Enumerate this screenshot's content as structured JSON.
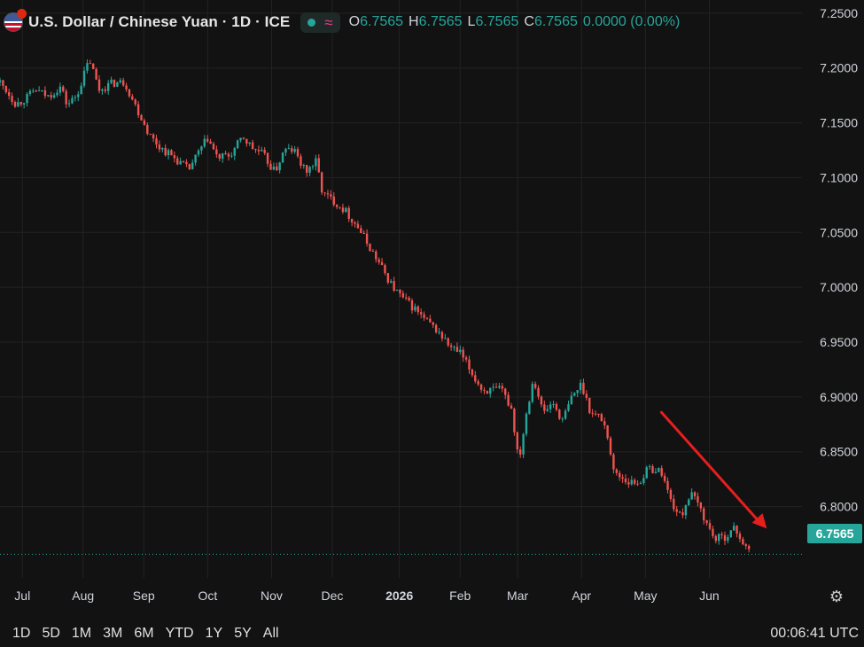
{
  "header": {
    "title": "U.S. Dollar / Chinese Yuan · 1D · ICE",
    "ohlc": [
      {
        "key": "O",
        "value": "6.7565"
      },
      {
        "key": "H",
        "value": "6.7565"
      },
      {
        "key": "L",
        "value": "6.7565"
      },
      {
        "key": "C",
        "value": "6.7565"
      }
    ],
    "change": "0.0000 (0.00%)"
  },
  "last_price_label": "6.7565",
  "footer": {
    "ranges": [
      "1D",
      "5D",
      "1M",
      "3M",
      "6M",
      "YTD",
      "1Y",
      "5Y",
      "All"
    ],
    "clock": "00:06:41 UTC"
  },
  "colors": {
    "up": "#26a69a",
    "down": "#ef5350",
    "arrow": "#e81e1e",
    "grid": "#232323",
    "background": "#121212"
  },
  "chart_data": {
    "type": "candlestick",
    "title": "U.S. Dollar / Chinese Yuan · 1D · ICE",
    "y_ticks": [
      6.8,
      6.85,
      6.9,
      6.95,
      7.0,
      7.05,
      7.1,
      7.15,
      7.2,
      7.25
    ],
    "y_tick_labels": [
      "6.8000",
      "6.8500",
      "6.9000",
      "6.9500",
      "7.0000",
      "7.0500",
      "7.1000",
      "7.1500",
      "7.2000",
      "7.2500"
    ],
    "ylim": [
      6.735,
      7.262
    ],
    "x_labels": [
      "Jul",
      "Aug",
      "Sep",
      "Oct",
      "Nov",
      "Dec",
      "2026",
      "Feb",
      "Mar",
      "Apr",
      "May",
      "Jun"
    ],
    "x_label_positions": [
      0.35,
      1.3,
      2.25,
      3.25,
      4.25,
      5.2,
      6.25,
      7.2,
      8.1,
      9.1,
      10.1,
      11.1
    ],
    "x_range": [
      0,
      12.55
    ],
    "last_price": 6.7565,
    "grid": true,
    "path": [
      [
        0.0,
        7.187
      ],
      [
        0.12,
        7.178
      ],
      [
        0.25,
        7.167
      ],
      [
        0.4,
        7.172
      ],
      [
        0.55,
        7.18
      ],
      [
        0.75,
        7.174
      ],
      [
        0.95,
        7.183
      ],
      [
        1.05,
        7.166
      ],
      [
        1.2,
        7.175
      ],
      [
        1.4,
        7.208
      ],
      [
        1.55,
        7.18
      ],
      [
        1.75,
        7.186
      ],
      [
        1.95,
        7.187
      ],
      [
        2.1,
        7.168
      ],
      [
        2.25,
        7.15
      ],
      [
        2.35,
        7.138
      ],
      [
        2.5,
        7.128
      ],
      [
        2.75,
        7.117
      ],
      [
        2.95,
        7.107
      ],
      [
        3.1,
        7.122
      ],
      [
        3.25,
        7.136
      ],
      [
        3.4,
        7.118
      ],
      [
        3.6,
        7.12
      ],
      [
        3.8,
        7.137
      ],
      [
        3.95,
        7.127
      ],
      [
        4.1,
        7.122
      ],
      [
        4.3,
        7.105
      ],
      [
        4.45,
        7.125
      ],
      [
        4.6,
        7.125
      ],
      [
        4.78,
        7.105
      ],
      [
        4.95,
        7.115
      ],
      [
        5.05,
        7.085
      ],
      [
        5.2,
        7.08
      ],
      [
        5.4,
        7.07
      ],
      [
        5.6,
        7.055
      ],
      [
        5.8,
        7.035
      ],
      [
        6.0,
        7.015
      ],
      [
        6.15,
        7.0
      ],
      [
        6.3,
        6.99
      ],
      [
        6.5,
        6.98
      ],
      [
        6.65,
        6.97
      ],
      [
        6.85,
        6.96
      ],
      [
        7.05,
        6.945
      ],
      [
        7.2,
        6.94
      ],
      [
        7.4,
        6.92
      ],
      [
        7.55,
        6.906
      ],
      [
        7.85,
        6.906
      ],
      [
        8.0,
        6.89
      ],
      [
        8.12,
        6.842
      ],
      [
        8.25,
        6.89
      ],
      [
        8.35,
        6.918
      ],
      [
        8.5,
        6.885
      ],
      [
        8.65,
        6.895
      ],
      [
        8.8,
        6.878
      ],
      [
        8.95,
        6.9
      ],
      [
        9.1,
        6.912
      ],
      [
        9.25,
        6.885
      ],
      [
        9.4,
        6.882
      ],
      [
        9.5,
        6.868
      ],
      [
        9.6,
        6.832
      ],
      [
        9.85,
        6.822
      ],
      [
        10.0,
        6.822
      ],
      [
        10.15,
        6.835
      ],
      [
        10.35,
        6.832
      ],
      [
        10.5,
        6.805
      ],
      [
        10.65,
        6.79
      ],
      [
        10.8,
        6.812
      ],
      [
        10.95,
        6.8
      ],
      [
        11.05,
        6.785
      ],
      [
        11.2,
        6.77
      ],
      [
        11.35,
        6.773
      ],
      [
        11.5,
        6.78
      ],
      [
        11.6,
        6.77
      ],
      [
        11.72,
        6.758
      ]
    ],
    "annotation": {
      "type": "arrow",
      "from": [
        10.35,
        6.886
      ],
      "to": [
        12.0,
        6.78
      ]
    }
  }
}
